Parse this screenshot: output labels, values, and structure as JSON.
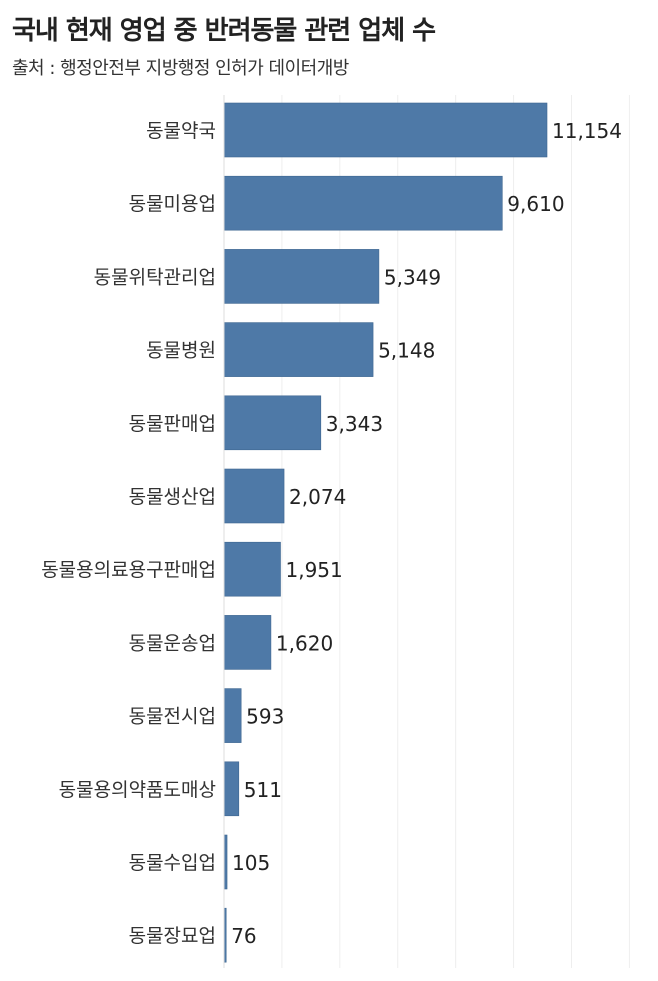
{
  "header": {
    "title": "국내 현재 영업 중 반려동물 관련 업체 수",
    "subtitle": "출처 : 행정안전부 지방행정 인허가 데이터개방"
  },
  "chart_data": {
    "type": "bar",
    "orientation": "horizontal",
    "title": "국내 현재 영업 중 반려동물 관련 업체 수",
    "subtitle": "출처 : 행정안전부 지방행정 인허가 데이터개방",
    "categories": [
      "동물약국",
      "동물미용업",
      "동물위탁관리업",
      "동물병원",
      "동물판매업",
      "동물생산업",
      "동물용의료용구판매업",
      "동물운송업",
      "동물전시업",
      "동물용의약품도매상",
      "동물수입업",
      "동물장묘업"
    ],
    "values": [
      11154,
      9610,
      5349,
      5148,
      3343,
      2074,
      1951,
      1620,
      593,
      511,
      105,
      76
    ],
    "value_labels": [
      "11,154",
      "9,610",
      "5,349",
      "5,148",
      "3,343",
      "2,074",
      "1,951",
      "1,620",
      "593",
      "511",
      "105",
      "76"
    ],
    "xlim": [
      0,
      14000
    ],
    "grid": true,
    "bar_color": "#4e79a7",
    "gridline_color": "#eeeeee"
  }
}
